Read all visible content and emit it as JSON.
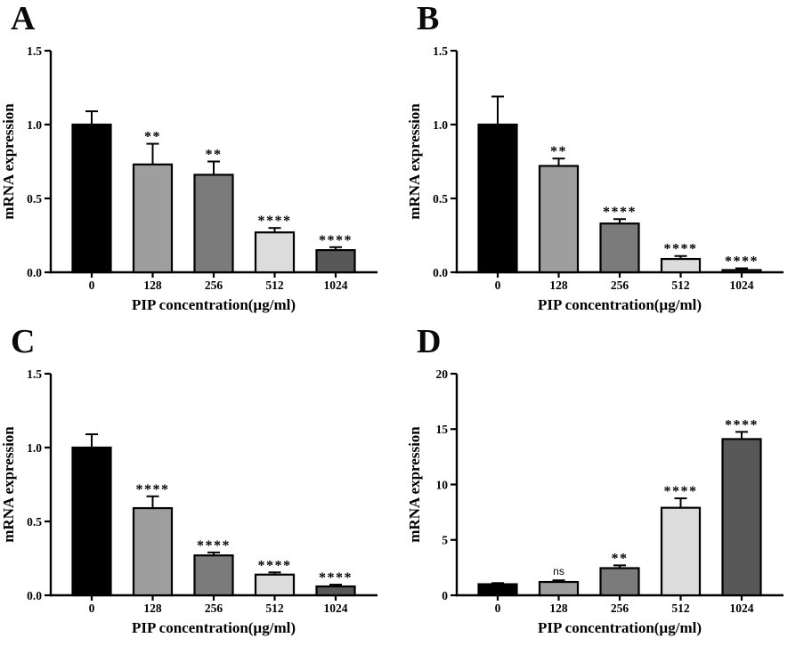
{
  "figure": {
    "background": "#ffffff",
    "axis_color": "#000000",
    "panel_letters": [
      "A",
      "B",
      "C",
      "D"
    ]
  },
  "chart_data": [
    {
      "panel": "A",
      "type": "bar",
      "title": "",
      "xlabel": "PIP concentration(µg/ml)",
      "ylabel": "mRNA expression",
      "categories": [
        "0",
        "128",
        "256",
        "512",
        "1024"
      ],
      "values": [
        1.0,
        0.73,
        0.66,
        0.27,
        0.15
      ],
      "errors": [
        0.09,
        0.14,
        0.09,
        0.03,
        0.02
      ],
      "significance": [
        "",
        "**",
        "**",
        "****",
        "****"
      ],
      "bar_colors": [
        "#000000",
        "#9e9e9e",
        "#7b7b7b",
        "#dcdcdc",
        "#585858"
      ],
      "ylim": [
        0,
        1.5
      ],
      "yticks": [
        0,
        0.5,
        1.0,
        1.5
      ],
      "ytick_labels": [
        "0.0",
        "0.5",
        "1.0",
        "1.5"
      ],
      "grid": false,
      "legend": "none"
    },
    {
      "panel": "B",
      "type": "bar",
      "title": "",
      "xlabel": "PIP concentration(µg/ml)",
      "ylabel": "mRNA expression",
      "categories": [
        "0",
        "128",
        "256",
        "512",
        "1024"
      ],
      "values": [
        1.0,
        0.72,
        0.33,
        0.09,
        0.015
      ],
      "errors": [
        0.19,
        0.05,
        0.03,
        0.02,
        0.012
      ],
      "significance": [
        "",
        "**",
        "****",
        "****",
        "****"
      ],
      "bar_colors": [
        "#000000",
        "#9e9e9e",
        "#7b7b7b",
        "#dcdcdc",
        "#585858"
      ],
      "ylim": [
        0,
        1.5
      ],
      "yticks": [
        0,
        0.5,
        1.0,
        1.5
      ],
      "ytick_labels": [
        "0.0",
        "0.5",
        "1.0",
        "1.5"
      ],
      "grid": false,
      "legend": "none"
    },
    {
      "panel": "C",
      "type": "bar",
      "title": "",
      "xlabel": "PIP concentration(µg/ml)",
      "ylabel": "mRNA expression",
      "categories": [
        "0",
        "128",
        "256",
        "512",
        "1024"
      ],
      "values": [
        1.0,
        0.59,
        0.27,
        0.14,
        0.06
      ],
      "errors": [
        0.09,
        0.08,
        0.02,
        0.015,
        0.012
      ],
      "significance": [
        "",
        "****",
        "****",
        "****",
        "****"
      ],
      "bar_colors": [
        "#000000",
        "#9e9e9e",
        "#7b7b7b",
        "#dcdcdc",
        "#585858"
      ],
      "ylim": [
        0,
        1.5
      ],
      "yticks": [
        0,
        0.5,
        1.0,
        1.5
      ],
      "ytick_labels": [
        "0.0",
        "0.5",
        "1.0",
        "1.5"
      ],
      "grid": false,
      "legend": "none"
    },
    {
      "panel": "D",
      "type": "bar",
      "title": "",
      "xlabel": "PIP concentration(µg/ml)",
      "ylabel": "mRNA expression",
      "categories": [
        "0",
        "128",
        "256",
        "512",
        "1024"
      ],
      "values": [
        1.0,
        1.2,
        2.45,
        7.9,
        14.1
      ],
      "errors": [
        0.1,
        0.15,
        0.25,
        0.85,
        0.65
      ],
      "significance": [
        "",
        "ns",
        "**",
        "****",
        "****"
      ],
      "bar_colors": [
        "#000000",
        "#9e9e9e",
        "#7b7b7b",
        "#dcdcdc",
        "#585858"
      ],
      "ylim": [
        0,
        20
      ],
      "yticks": [
        0,
        5,
        10,
        15,
        20
      ],
      "ytick_labels": [
        "0",
        "5",
        "10",
        "15",
        "20"
      ],
      "grid": false,
      "legend": "none"
    }
  ]
}
